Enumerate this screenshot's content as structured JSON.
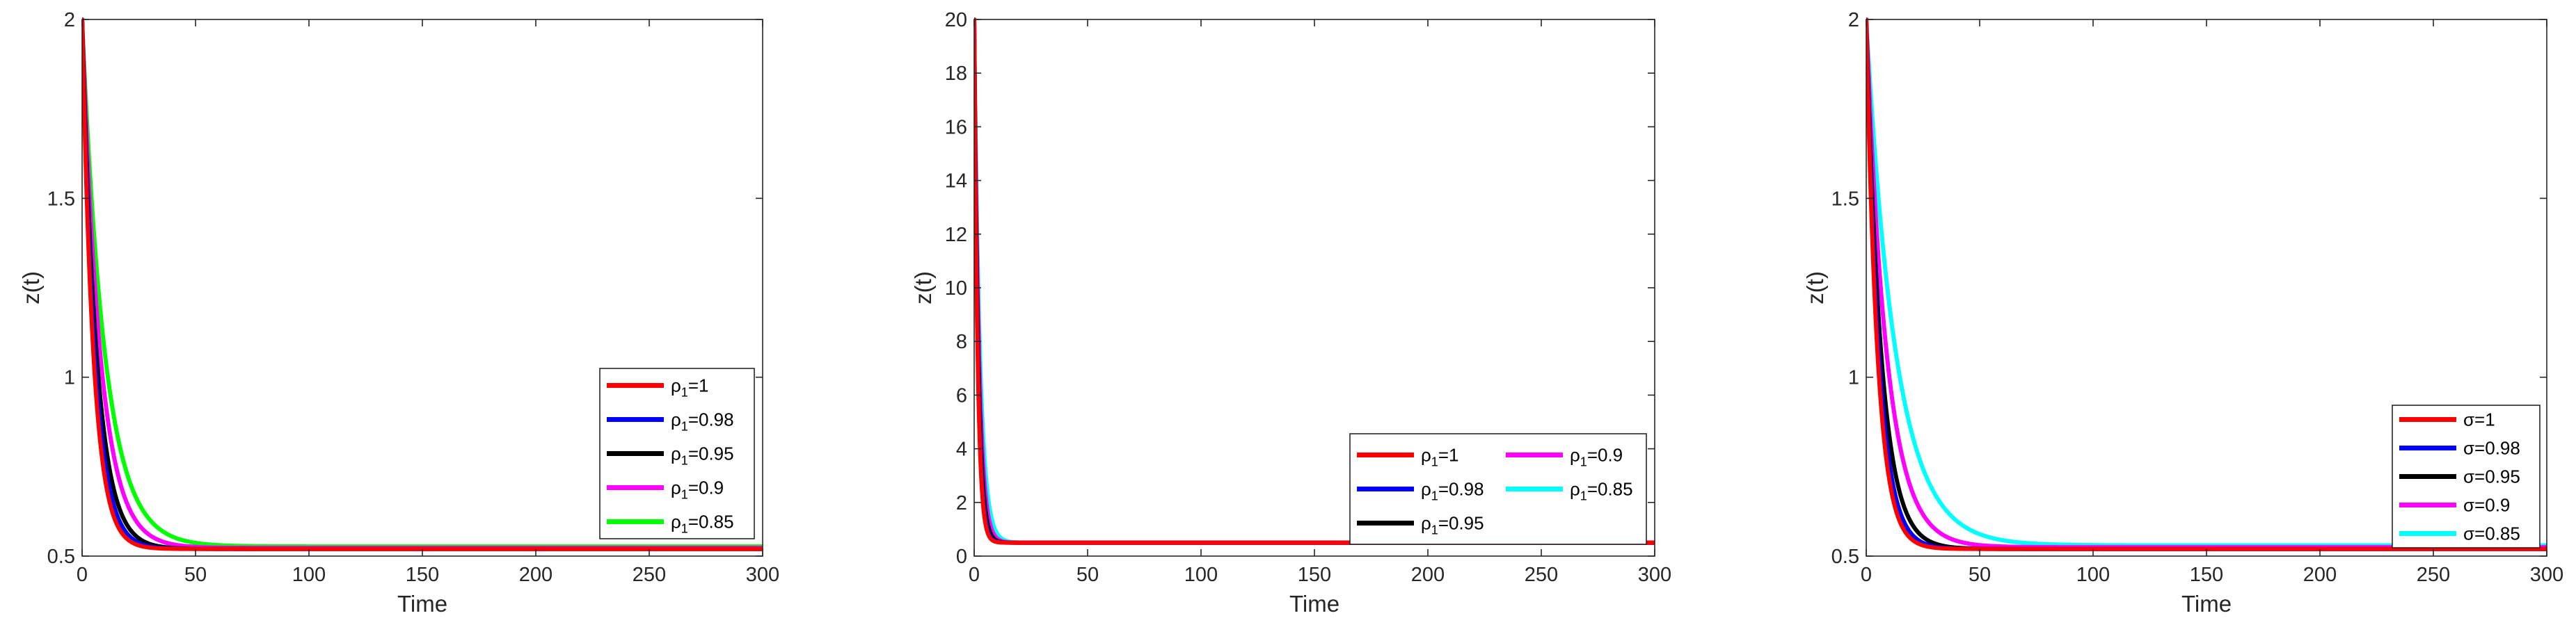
{
  "chart_data": [
    {
      "type": "line",
      "xlabel": "Time",
      "ylabel": "z(t)",
      "xlim": [
        0,
        300
      ],
      "ylim": [
        0.5,
        2
      ],
      "xticks": [
        "0",
        "50",
        "100",
        "150",
        "200",
        "250",
        "300"
      ],
      "yticks": [
        "0.5",
        "1",
        "1.5",
        "2"
      ],
      "legend_location": "right",
      "legend_columns": 1,
      "model": {
        "z0": 2.0,
        "z_inf": 0.52
      },
      "series": [
        {
          "name": "ρ1=1",
          "label_base": "ρ",
          "label_sub": "1",
          "label_tail": "=1",
          "color": "#ff0000",
          "tau": 5.0,
          "z_inf": 0.52
        },
        {
          "name": "ρ1=0.98",
          "label_base": "ρ",
          "label_sub": "1",
          "label_tail": "=0.98",
          "color": "#0000ff",
          "tau": 5.6,
          "z_inf": 0.52
        },
        {
          "name": "ρ1=0.95",
          "label_base": "ρ",
          "label_sub": "1",
          "label_tail": "=0.95",
          "color": "#000000",
          "tau": 6.4,
          "z_inf": 0.52
        },
        {
          "name": "ρ1=0.9",
          "label_base": "ρ",
          "label_sub": "1",
          "label_tail": "=0.9",
          "color": "#ff00ff",
          "tau": 8.0,
          "z_inf": 0.523
        },
        {
          "name": "ρ1=0.85",
          "label_base": "ρ",
          "label_sub": "1",
          "label_tail": "=0.85",
          "color": "#00ff00",
          "tau": 10.0,
          "z_inf": 0.527
        }
      ]
    },
    {
      "type": "line",
      "xlabel": "Time",
      "ylabel": "z(t)",
      "xlim": [
        0,
        300
      ],
      "ylim": [
        0,
        20
      ],
      "xticks": [
        "0",
        "50",
        "100",
        "150",
        "200",
        "250",
        "300"
      ],
      "yticks": [
        "0",
        "2",
        "4",
        "6",
        "8",
        "10",
        "12",
        "14",
        "16",
        "18",
        "20"
      ],
      "legend_location": "bottom-right",
      "legend_columns": 2,
      "model": {
        "z0": 20.0,
        "z_inf": 0.5
      },
      "series": [
        {
          "name": "ρ1=1",
          "label_base": "ρ",
          "label_sub": "1",
          "label_tail": "=1",
          "color": "#ff0000",
          "tau": 1.5,
          "z_inf": 0.5
        },
        {
          "name": "ρ1=0.98",
          "label_base": "ρ",
          "label_sub": "1",
          "label_tail": "=0.98",
          "color": "#0000ff",
          "tau": 1.6,
          "z_inf": 0.5
        },
        {
          "name": "ρ1=0.95",
          "label_base": "ρ",
          "label_sub": "1",
          "label_tail": "=0.95",
          "color": "#000000",
          "tau": 1.8,
          "z_inf": 0.5
        },
        {
          "name": "ρ1=0.9",
          "label_base": "ρ",
          "label_sub": "1",
          "label_tail": "=0.9",
          "color": "#ff00ff",
          "tau": 2.1,
          "z_inf": 0.5
        },
        {
          "name": "ρ1=0.85",
          "label_base": "ρ",
          "label_sub": "1",
          "label_tail": "=0.85",
          "color": "#00ffff",
          "tau": 2.5,
          "z_inf": 0.5
        }
      ]
    },
    {
      "type": "line",
      "xlabel": "Time",
      "ylabel": "z(t)",
      "xlim": [
        0,
        300
      ],
      "ylim": [
        0.5,
        2
      ],
      "xticks": [
        "0",
        "50",
        "100",
        "150",
        "200",
        "250",
        "300"
      ],
      "yticks": [
        "0.5",
        "1",
        "1.5",
        "2"
      ],
      "legend_location": "right",
      "legend_columns": 1,
      "model": {
        "z0": 2.0,
        "z_inf": 0.52
      },
      "series": [
        {
          "name": "σ=1",
          "label_base": "σ",
          "label_sub": "",
          "label_tail": "=1",
          "color": "#ff0000",
          "tau": 5.0,
          "z_inf": 0.52
        },
        {
          "name": "σ=0.98",
          "label_base": "σ",
          "label_sub": "",
          "label_tail": "=0.98",
          "color": "#0000ff",
          "tau": 5.6,
          "z_inf": 0.52
        },
        {
          "name": "σ=0.95",
          "label_base": "σ",
          "label_sub": "",
          "label_tail": "=0.95",
          "color": "#000000",
          "tau": 6.6,
          "z_inf": 0.52
        },
        {
          "name": "σ=0.9",
          "label_base": "σ",
          "label_sub": "",
          "label_tail": "=0.9",
          "color": "#ff00ff",
          "tau": 9.0,
          "z_inf": 0.525
        },
        {
          "name": "σ=0.85",
          "label_base": "σ",
          "label_sub": "",
          "label_tail": "=0.85",
          "color": "#00ffff",
          "tau": 13.0,
          "z_inf": 0.53
        }
      ]
    }
  ]
}
